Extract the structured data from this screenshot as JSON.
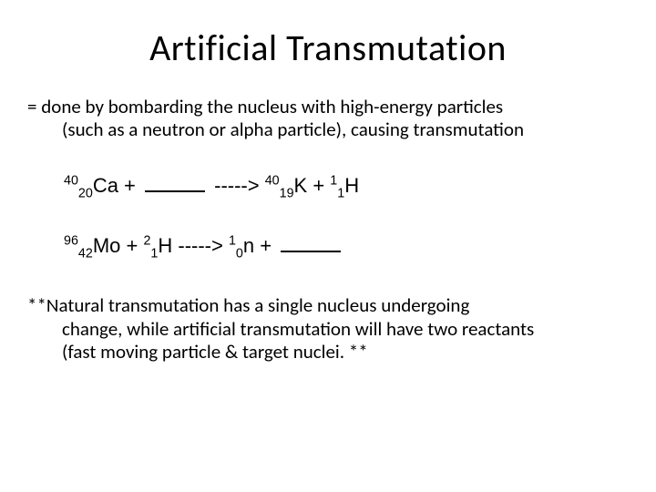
{
  "title": "Artificial Transmutation",
  "definition": {
    "line1": "= done by bombarding the nucleus with high-energy particles",
    "line2": "(such as a neutron or alpha particle), causing transmutation"
  },
  "eq1": {
    "r1_mass": "40",
    "r1_z": "20",
    "r1_sym": "Ca",
    "plus1": " + ",
    "arrow": "  ----->  ",
    "p1_mass": "40",
    "p1_z": "19",
    "p1_sym": "K",
    "plus2": "  +  ",
    "p2_mass": "1",
    "p2_z": "1",
    "p2_sym": "H"
  },
  "eq2": {
    "r1_mass": "96",
    "r1_z": "42",
    "r1_sym": "Mo",
    "plus1": "  +  ",
    "r2_mass": "2",
    "r2_z": "1",
    "r2_sym": "H",
    "arrow": "  ----->  ",
    "p1_mass": "1",
    "p1_z": "0",
    "p1_sym": "n",
    "plus2": "  +  "
  },
  "footnote": {
    "line1": "**Natural transmutation has a single nucleus undergoing",
    "line2": "change, while artificial transmutation will have two reactants",
    "line3": "(fast moving particle & target nuclei. **"
  }
}
